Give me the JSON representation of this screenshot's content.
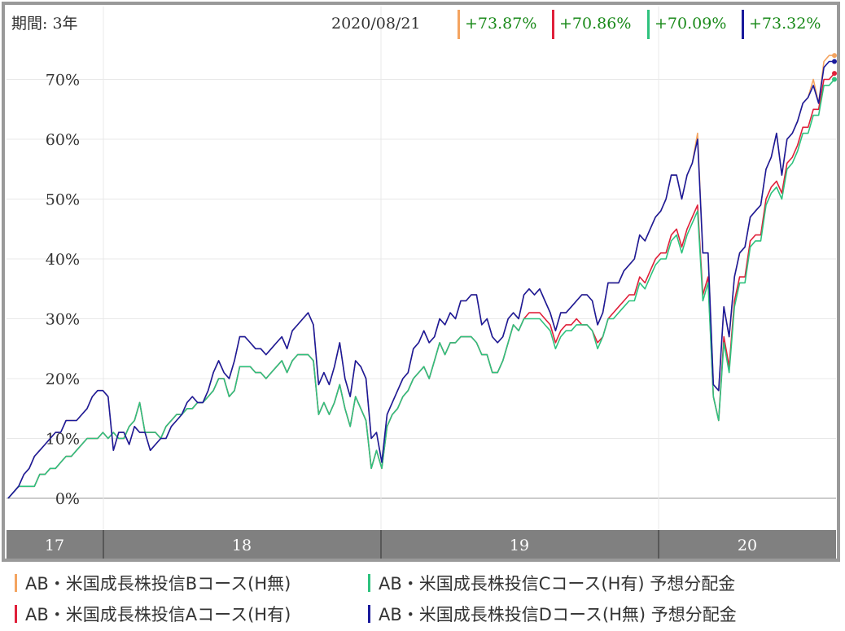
{
  "header": {
    "period": "期間: 3年",
    "date": "2020/08/21"
  },
  "chart_data": {
    "type": "line",
    "x_ticks": [
      "17",
      "18",
      "19",
      "20"
    ],
    "y_ticks": [
      "0%",
      "10%",
      "20%",
      "30%",
      "40%",
      "50%",
      "60%",
      "70%"
    ],
    "ylim": [
      -3,
      80
    ],
    "grid": true,
    "series": [
      {
        "name": "AB・米国成長株投信Bコース(H無)",
        "color": "#f4a460",
        "current": "+73.87%",
        "values": [
          0,
          1,
          2,
          4,
          5,
          7,
          8,
          9,
          10,
          11,
          11,
          13,
          13,
          13,
          14,
          15,
          17,
          18,
          18,
          17,
          8,
          11,
          11,
          9,
          12,
          11,
          11,
          8,
          9,
          10,
          10,
          12,
          13,
          14,
          16,
          17,
          16,
          16,
          18,
          21,
          23,
          21,
          20,
          23,
          27,
          27,
          26,
          25,
          25,
          24,
          25,
          26,
          27,
          25,
          28,
          29,
          30,
          31,
          29,
          19,
          21,
          19,
          22,
          26,
          20,
          17,
          23,
          22,
          20,
          10,
          11,
          6,
          14,
          16,
          18,
          20,
          21,
          25,
          26,
          28,
          26,
          27,
          30,
          29,
          31,
          30,
          33,
          33,
          34,
          34,
          29,
          30,
          27,
          26,
          27,
          30,
          31,
          30,
          34,
          35,
          34,
          35,
          33,
          31,
          28,
          31,
          31,
          32,
          33,
          34,
          34,
          33,
          29,
          31,
          36,
          36,
          36,
          38,
          39,
          40,
          44,
          43,
          45,
          47,
          48,
          50,
          54,
          54,
          50,
          54,
          56,
          61,
          41,
          41,
          19,
          18,
          32,
          27,
          37,
          41,
          42,
          47,
          48,
          49,
          55,
          57,
          61,
          54,
          60,
          61,
          63,
          66,
          67,
          70,
          66,
          73,
          74,
          74
        ]
      },
      {
        "name": "AB・米国成長株投信Aコース(H有)",
        "color": "#e0203a",
        "current": "+70.86%",
        "values": [
          0,
          1,
          2,
          2,
          2,
          2,
          4,
          4,
          5,
          5,
          6,
          7,
          7,
          8,
          9,
          10,
          10,
          10,
          11,
          10,
          11,
          10,
          10,
          12,
          13,
          16,
          11,
          11,
          11,
          10,
          12,
          13,
          14,
          14,
          15,
          15,
          16,
          16,
          17,
          18,
          20,
          20,
          17,
          18,
          22,
          22,
          22,
          21,
          21,
          20,
          21,
          22,
          23,
          21,
          23,
          24,
          24,
          24,
          23,
          14,
          16,
          14,
          16,
          19,
          15,
          12,
          17,
          15,
          13,
          5,
          8,
          5,
          12,
          14,
          15,
          17,
          18,
          20,
          21,
          22,
          20,
          23,
          26,
          24,
          26,
          26,
          27,
          27,
          27,
          26,
          24,
          24,
          21,
          21,
          23,
          26,
          29,
          28,
          30,
          31,
          31,
          31,
          30,
          29,
          26,
          28,
          29,
          29,
          30,
          29,
          29,
          28,
          26,
          27,
          30,
          31,
          32,
          33,
          34,
          34,
          37,
          36,
          38,
          40,
          41,
          41,
          44,
          45,
          42,
          45,
          47,
          49,
          34,
          37,
          17,
          13,
          27,
          22,
          33,
          37,
          37,
          43,
          44,
          44,
          50,
          52,
          53,
          51,
          56,
          57,
          59,
          62,
          62,
          65,
          65,
          70,
          70,
          71
        ]
      },
      {
        "name": "AB・米国成長株投信Cコース(H有) 予想分配金",
        "color": "#2ec27e",
        "current": "+70.09%",
        "values": [
          0,
          1,
          2,
          2,
          2,
          2,
          4,
          4,
          5,
          5,
          6,
          7,
          7,
          8,
          9,
          10,
          10,
          10,
          11,
          10,
          11,
          10,
          10,
          12,
          13,
          16,
          11,
          11,
          11,
          10,
          12,
          13,
          14,
          14,
          15,
          15,
          16,
          16,
          17,
          18,
          20,
          20,
          17,
          18,
          22,
          22,
          22,
          21,
          21,
          20,
          21,
          22,
          23,
          21,
          23,
          24,
          24,
          24,
          23,
          14,
          16,
          14,
          16,
          19,
          15,
          12,
          17,
          15,
          13,
          5,
          8,
          5,
          12,
          14,
          15,
          17,
          18,
          20,
          21,
          22,
          20,
          23,
          26,
          24,
          26,
          26,
          27,
          27,
          27,
          26,
          24,
          24,
          21,
          21,
          23,
          26,
          29,
          28,
          30,
          30,
          30,
          30,
          29,
          28,
          25,
          27,
          28,
          28,
          29,
          29,
          29,
          28,
          25,
          27,
          30,
          30,
          31,
          32,
          33,
          33,
          36,
          35,
          37,
          39,
          40,
          40,
          43,
          44,
          41,
          44,
          46,
          48,
          33,
          36,
          17,
          13,
          26,
          21,
          32,
          36,
          36,
          42,
          43,
          43,
          49,
          51,
          52,
          50,
          55,
          56,
          58,
          61,
          61,
          64,
          64,
          69,
          69,
          70
        ]
      },
      {
        "name": "AB・米国成長株投信Dコース(H無) 予想分配金",
        "color": "#1a1a9c",
        "current": "+73.32%",
        "values": [
          0,
          1,
          2,
          4,
          5,
          7,
          8,
          9,
          10,
          11,
          11,
          13,
          13,
          13,
          14,
          15,
          17,
          18,
          18,
          17,
          8,
          11,
          11,
          9,
          12,
          11,
          11,
          8,
          9,
          10,
          10,
          12,
          13,
          14,
          16,
          17,
          16,
          16,
          18,
          21,
          23,
          21,
          20,
          23,
          27,
          27,
          26,
          25,
          25,
          24,
          25,
          26,
          27,
          25,
          28,
          29,
          30,
          31,
          29,
          19,
          21,
          19,
          22,
          26,
          20,
          17,
          23,
          22,
          20,
          10,
          11,
          6,
          14,
          16,
          18,
          20,
          21,
          25,
          26,
          28,
          26,
          27,
          30,
          29,
          31,
          30,
          33,
          33,
          34,
          34,
          29,
          30,
          27,
          26,
          27,
          30,
          31,
          30,
          34,
          35,
          34,
          35,
          33,
          31,
          28,
          31,
          31,
          32,
          33,
          34,
          34,
          33,
          29,
          31,
          36,
          36,
          36,
          38,
          39,
          40,
          44,
          43,
          45,
          47,
          48,
          50,
          54,
          54,
          50,
          54,
          56,
          60,
          41,
          41,
          19,
          18,
          32,
          27,
          37,
          41,
          42,
          47,
          48,
          49,
          55,
          57,
          61,
          54,
          60,
          61,
          63,
          66,
          67,
          69,
          66,
          72,
          73,
          73
        ]
      }
    ]
  }
}
